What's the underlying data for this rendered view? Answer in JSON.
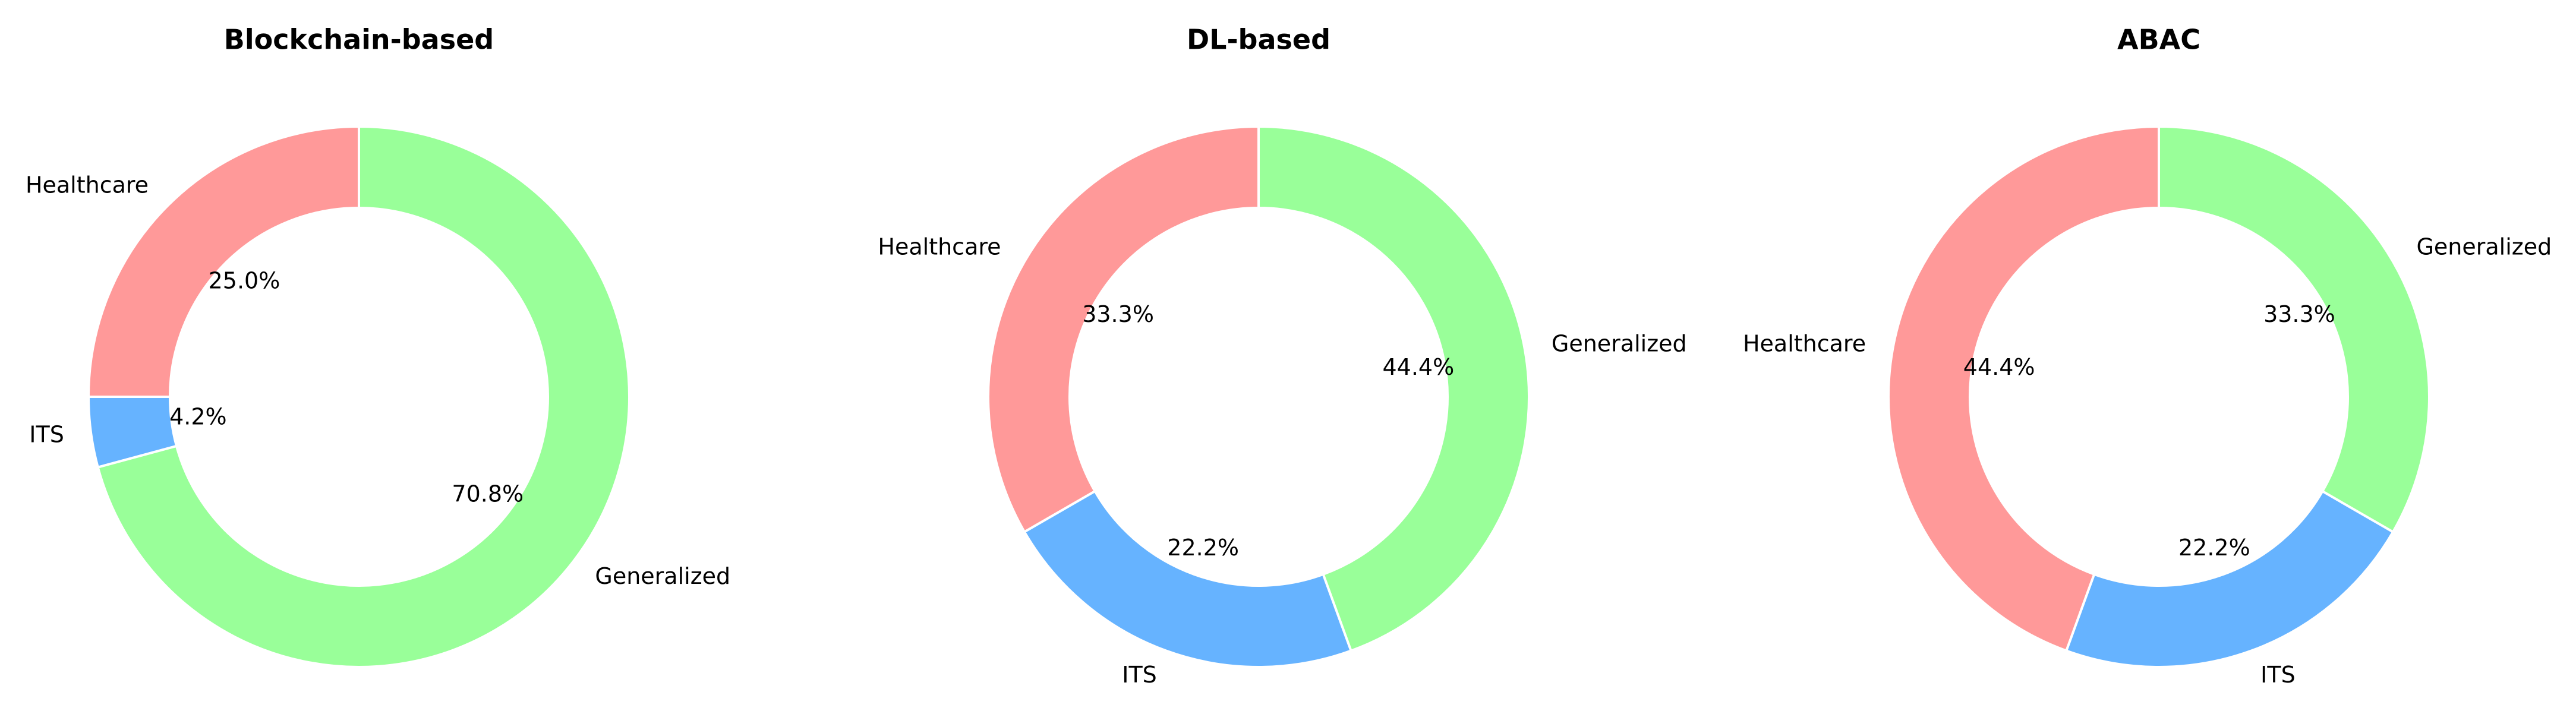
{
  "chart_data": [
    {
      "type": "pie",
      "style": "donut",
      "title": "Blockchain-based",
      "categories": [
        "Healthcare",
        "ITS",
        "Generalized"
      ],
      "values": [
        25.0,
        4.2,
        70.8
      ],
      "value_labels": [
        "25.0%",
        "4.2%",
        "70.8%"
      ],
      "colors": [
        "#ff9999",
        "#66b3ff",
        "#99ff99"
      ]
    },
    {
      "type": "pie",
      "style": "donut",
      "title": "DL-based",
      "categories": [
        "Healthcare",
        "ITS",
        "Generalized"
      ],
      "values": [
        33.3,
        22.2,
        44.4
      ],
      "value_labels": [
        "33.3%",
        "22.2%",
        "44.4%"
      ],
      "colors": [
        "#ff9999",
        "#66b3ff",
        "#99ff99"
      ]
    },
    {
      "type": "pie",
      "style": "donut",
      "title": "ABAC",
      "categories": [
        "Healthcare",
        "ITS",
        "Generalized"
      ],
      "values": [
        44.4,
        22.2,
        33.3
      ],
      "value_labels": [
        "44.4%",
        "22.2%",
        "33.3%"
      ],
      "colors": [
        "#ff9999",
        "#66b3ff",
        "#99ff99"
      ]
    }
  ]
}
